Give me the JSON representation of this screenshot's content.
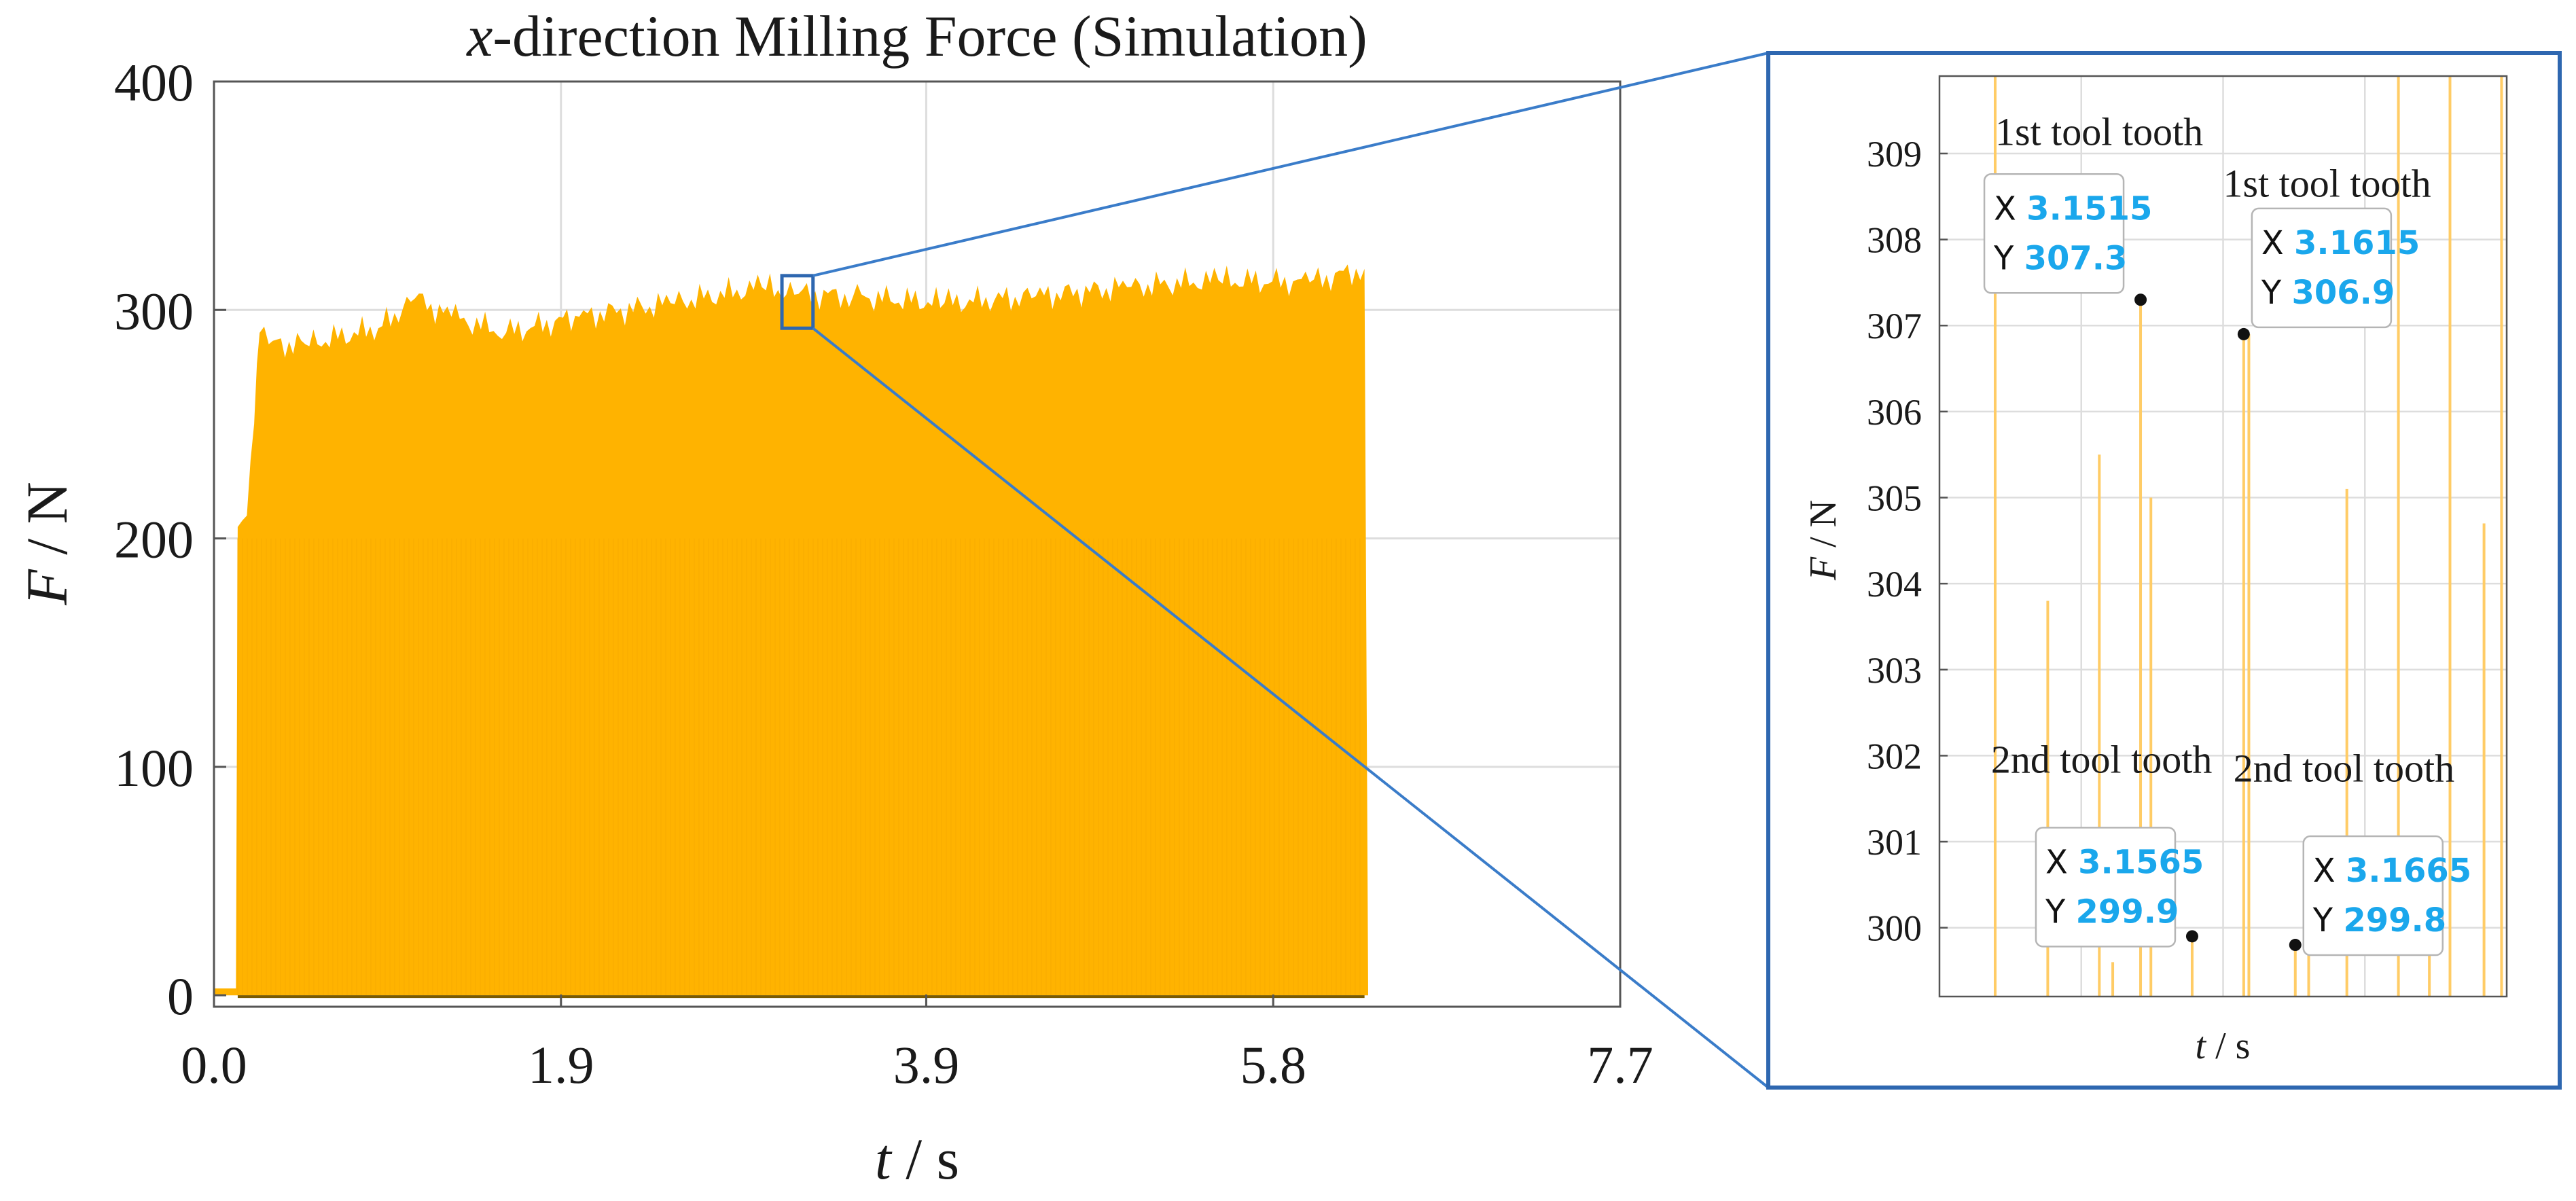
{
  "colors": {
    "signal": "#FFB300",
    "zoom_signal": "#FFCC66",
    "grid": "#DDDDDD",
    "axis": "#555555",
    "zoom_frame": "#2E67B0",
    "zoom_line": "#3A7CC9",
    "datatip_value": "#1AA7EC",
    "text": "#1A1A1A"
  },
  "chart_data": [
    {
      "id": "main",
      "type": "line",
      "title_prefix": "x",
      "title_rest": "-direction Milling Force (Simulation)",
      "xlabel_var": "t",
      "xlabel_unit": " / s",
      "ylabel_var": "F",
      "ylabel_unit": " / N",
      "xlim": [
        0,
        7.7
      ],
      "ylim": [
        -5,
        400
      ],
      "xticks": [
        0.0,
        1.9,
        3.9,
        5.8,
        7.7
      ],
      "xtick_labels": [
        "0.0",
        "1.9",
        "3.9",
        "5.8",
        "7.7"
      ],
      "yticks": [
        0,
        100,
        200,
        300,
        400
      ],
      "ytick_labels": [
        "0",
        "100",
        "200",
        "300",
        "400"
      ],
      "grid": true,
      "signal_envelope": {
        "name": "x-direction milling force",
        "t": [
          0,
          0.12,
          0.13,
          0.18,
          0.22,
          0.25,
          0.3,
          0.5,
          0.9,
          1.1,
          1.3,
          1.6,
          2.0,
          2.5,
          3.0,
          3.2,
          3.5,
          4.0,
          4.5,
          5.0,
          5.5,
          6.0,
          6.3,
          6.32
        ],
        "F": [
          3,
          3,
          205,
          210,
          250,
          290,
          285,
          285,
          292,
          305,
          297,
          290,
          297,
          303,
          310,
          307,
          306,
          303,
          306,
          310,
          313,
          312,
          318,
          0
        ]
      },
      "signal_floor": 0,
      "zoom_window": {
        "t": [
          3.11,
          3.28
        ],
        "F": [
          292,
          315
        ]
      }
    },
    {
      "id": "zoom",
      "type": "line",
      "xlabel_var": "t",
      "xlabel_unit": " / s",
      "ylabel_var": "F",
      "ylabel_unit": " / N",
      "xlim": [
        3.132,
        3.187
      ],
      "ylim": [
        299.2,
        309.9
      ],
      "yticks": [
        300,
        301,
        302,
        303,
        304,
        305,
        306,
        307,
        308,
        309
      ],
      "ytick_labels": [
        "300",
        "301",
        "302",
        "303",
        "304",
        "305",
        "306",
        "307",
        "308",
        "309"
      ],
      "grid": true,
      "spikes": [
        {
          "t": 3.1374,
          "F": 309.9
        },
        {
          "t": 3.1425,
          "F": 303.8
        },
        {
          "t": 3.1475,
          "F": 305.5
        },
        {
          "t": 3.1488,
          "F": 299.6
        },
        {
          "t": 3.1525,
          "F": 305.0
        },
        {
          "t": 3.1515,
          "F": 307.3
        },
        {
          "t": 3.1615,
          "F": 306.9
        },
        {
          "t": 3.162,
          "F": 306.9
        },
        {
          "t": 3.1565,
          "F": 299.9
        },
        {
          "t": 3.1665,
          "F": 299.8
        },
        {
          "t": 3.1678,
          "F": 299.8
        },
        {
          "t": 3.1715,
          "F": 305.1
        },
        {
          "t": 3.1765,
          "F": 309.9
        },
        {
          "t": 3.1795,
          "F": 299.7
        },
        {
          "t": 3.1815,
          "F": 309.9
        },
        {
          "t": 3.1848,
          "F": 304.7
        },
        {
          "t": 3.1865,
          "F": 309.9
        }
      ],
      "annotations": [
        {
          "text": "1st tool tooth",
          "t": 3.1374,
          "F": 309.1
        },
        {
          "text": "1st tool tooth",
          "t": 3.1595,
          "F": 308.5
        },
        {
          "text": "2nd tool tooth",
          "t": 3.137,
          "F": 301.8
        },
        {
          "text": "2nd tool tooth",
          "t": 3.1605,
          "F": 301.7
        }
      ],
      "datatips": [
        {
          "x_label": "X",
          "x_value": "3.1515",
          "y_label": "Y",
          "y_value": "307.3",
          "t": 3.1515,
          "F": 307.3,
          "box": "left"
        },
        {
          "x_label": "X",
          "x_value": "3.1615",
          "y_label": "Y",
          "y_value": "306.9",
          "t": 3.1615,
          "F": 306.9,
          "box": "right"
        },
        {
          "x_label": "X",
          "x_value": "3.1565",
          "y_label": "Y",
          "y_value": "299.9",
          "t": 3.1565,
          "F": 299.9,
          "box": "left"
        },
        {
          "x_label": "X",
          "x_value": "3.1665",
          "y_label": "Y",
          "y_value": "299.8",
          "t": 3.1665,
          "F": 299.8,
          "box": "right"
        }
      ]
    }
  ]
}
